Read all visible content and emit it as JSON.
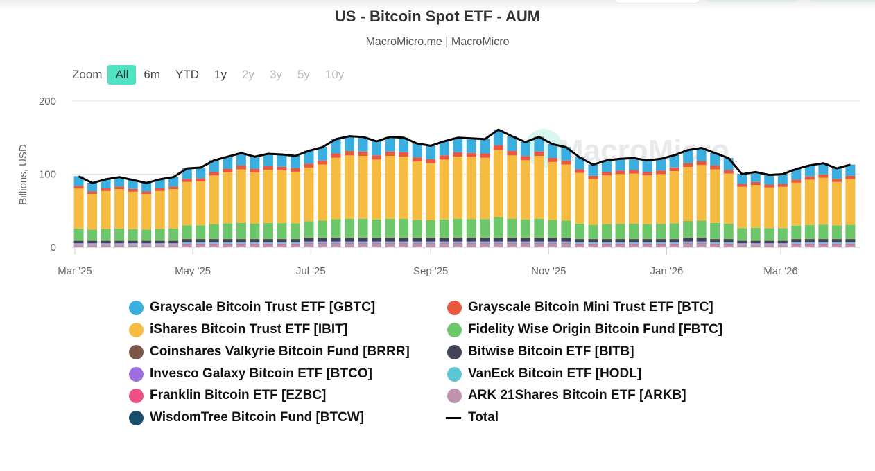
{
  "title": "US - Bitcoin Spot ETF - AUM",
  "subtitle": "MacroMicro.me | MacroMicro",
  "zoom": {
    "label": "Zoom",
    "buttons": [
      {
        "label": "All",
        "state": "active"
      },
      {
        "label": "6m",
        "state": "enabled"
      },
      {
        "label": "YTD",
        "state": "enabled"
      },
      {
        "label": "1y",
        "state": "enabled"
      },
      {
        "label": "2y",
        "state": "disabled"
      },
      {
        "label": "3y",
        "state": "disabled"
      },
      {
        "label": "5y",
        "state": "disabled"
      },
      {
        "label": "10y",
        "state": "disabled"
      }
    ]
  },
  "watermark": "MacroMicro",
  "chart_data": {
    "type": "bar",
    "stacked": true,
    "title": "US - Bitcoin Spot ETF - AUM",
    "subtitle": "MacroMicro.me | MacroMicro",
    "ylabel": "Billions, USD",
    "ylim": [
      0,
      200
    ],
    "yticks": [
      "0",
      "100",
      "200"
    ],
    "xticks": [
      {
        "date": "2025-03-01",
        "label": "Mar '25"
      },
      {
        "date": "2025-05-01",
        "label": "May '25"
      },
      {
        "date": "2025-07-01",
        "label": "Jul '25"
      },
      {
        "date": "2025-09-01",
        "label": "Sep '25"
      },
      {
        "date": "2025-11-01",
        "label": "Nov '25"
      },
      {
        "date": "2026-01-01",
        "label": "Jan '26"
      },
      {
        "date": "2026-03-01",
        "label": "Mar '26"
      }
    ],
    "grid": true,
    "legend": "bottom",
    "x_start": "2025-03-03",
    "x_step": "weekly",
    "series": [
      {
        "name": "Grayscale Bitcoin Trust ETF [GBTC]",
        "color": "#3aafdf",
        "values": [
          12.6,
          11.4,
          12.1,
          12.5,
          12.0,
          11.4,
          12.1,
          12.5,
          14.0,
          14.2,
          15.5,
          16.1,
          16.8,
          16.1,
          16.6,
          16.5,
          16.3,
          17.2,
          17.8,
          19.2,
          19.8,
          19.6,
          18.9,
          19.6,
          19.5,
          18.5,
          18.1,
          18.9,
          19.5,
          19.4,
          19.2,
          20.9,
          19.8,
          18.7,
          19.6,
          18.3,
          17.8,
          16.0,
          14.7,
          15.5,
          15.7,
          15.9,
          15.5,
          15.7,
          16.4,
          17.3,
          17.7,
          16.8,
          15.9,
          13.0,
          13.4,
          12.9,
          13.0,
          13.9,
          14.6,
          15.0,
          14.0,
          14.7
        ]
      },
      {
        "name": "Grayscale Bitcoin Mini Trust ETF [BTC]",
        "color": "#e9573f",
        "values": [
          3.9,
          3.5,
          3.7,
          3.8,
          3.7,
          3.5,
          3.7,
          3.8,
          4.3,
          4.4,
          4.8,
          5.0,
          5.2,
          5.0,
          5.1,
          5.1,
          5.0,
          5.3,
          5.5,
          5.9,
          6.1,
          6.0,
          5.8,
          6.0,
          6.0,
          5.7,
          5.6,
          5.8,
          6.0,
          6.0,
          5.9,
          6.4,
          6.1,
          5.8,
          6.0,
          5.6,
          5.5,
          4.9,
          4.5,
          4.8,
          4.8,
          4.9,
          4.8,
          4.8,
          5.0,
          5.3,
          5.4,
          5.2,
          4.9,
          4.0,
          4.1,
          4.0,
          4.0,
          4.3,
          4.5,
          4.6,
          4.3,
          4.5
        ]
      },
      {
        "name": "iShares Bitcoin Trust ETF [IBIT]",
        "color": "#f6bc41",
        "values": [
          54.4,
          48.5,
          51.8,
          53.8,
          51.1,
          48.5,
          51.8,
          53.8,
          59.4,
          60.0,
          66.6,
          69.9,
          73.2,
          69.9,
          72.6,
          71.9,
          70.6,
          73.3,
          76.6,
          83.9,
          86.5,
          85.9,
          81.9,
          85.9,
          85.2,
          79.9,
          77.9,
          81.9,
          85.2,
          84.5,
          83.9,
          92.5,
          86.5,
          81.2,
          85.9,
          79.3,
          76.6,
          69.3,
          62.7,
          66.6,
          68.0,
          68.6,
          66.6,
          68.0,
          71.3,
          74.0,
          76.0,
          73.2,
          68.6,
          56.4,
          58.4,
          55.7,
          56.4,
          58.7,
          62.0,
          64.0,
          59.4,
          62.7
        ]
      },
      {
        "name": "Fidelity Wise Origin Bitcoin Fund [FBTC]",
        "color": "#6cc66a",
        "values": [
          16.5,
          15.0,
          15.8,
          16.3,
          15.6,
          15.0,
          15.8,
          16.3,
          18.4,
          18.5,
          20.2,
          21.1,
          21.9,
          21.1,
          21.8,
          21.6,
          21.3,
          22.4,
          23.3,
          25.2,
          25.8,
          25.7,
          24.7,
          25.7,
          25.5,
          24.1,
          23.6,
          24.7,
          25.5,
          25.3,
          25.2,
          27.4,
          25.8,
          24.5,
          25.7,
          24.0,
          23.3,
          20.9,
          19.2,
          20.2,
          20.6,
          20.7,
          20.2,
          20.6,
          21.4,
          22.6,
          23.1,
          21.9,
          20.7,
          17.0,
          17.5,
          16.8,
          17.0,
          18.2,
          19.0,
          19.6,
          18.4,
          19.2
        ]
      },
      {
        "name": "Coinshares Valkyrie Bitcoin Fund [BRRR]",
        "color": "#7a5548",
        "values": [
          0.5,
          0.5,
          0.5,
          0.5,
          0.5,
          0.5,
          0.5,
          0.5,
          0.6,
          0.6,
          0.6,
          0.6,
          0.6,
          0.6,
          0.6,
          0.6,
          0.6,
          0.7,
          0.7,
          0.7,
          0.7,
          0.7,
          0.7,
          0.7,
          0.7,
          0.7,
          0.7,
          0.7,
          0.7,
          0.7,
          0.7,
          0.7,
          0.7,
          0.7,
          0.7,
          0.7,
          0.7,
          0.6,
          0.6,
          0.6,
          0.6,
          0.6,
          0.6,
          0.6,
          0.6,
          0.7,
          0.7,
          0.6,
          0.6,
          0.5,
          0.5,
          0.5,
          0.5,
          0.6,
          0.6,
          0.6,
          0.6,
          0.6
        ]
      },
      {
        "name": "Bitwise Bitcoin ETF [BITB]",
        "color": "#424356",
        "values": [
          3.2,
          3.2,
          3.2,
          3.2,
          3.2,
          3.2,
          3.2,
          3.2,
          4.0,
          4.0,
          4.0,
          4.0,
          4.0,
          4.0,
          4.0,
          4.0,
          4.0,
          4.6,
          4.6,
          4.6,
          4.6,
          4.6,
          4.6,
          4.6,
          4.6,
          4.6,
          4.6,
          4.6,
          4.6,
          4.6,
          4.6,
          4.6,
          4.6,
          4.6,
          4.6,
          4.6,
          4.6,
          4.0,
          4.0,
          4.0,
          4.0,
          4.0,
          4.0,
          4.0,
          4.0,
          4.6,
          4.6,
          4.0,
          4.0,
          3.2,
          3.2,
          3.2,
          3.2,
          4.0,
          4.0,
          4.0,
          4.0,
          4.0
        ]
      },
      {
        "name": "Invesco Galaxy Bitcoin ETF [BTCO]",
        "color": "#9b6fe0",
        "values": [
          0.5,
          0.5,
          0.5,
          0.5,
          0.5,
          0.5,
          0.5,
          0.5,
          0.6,
          0.6,
          0.6,
          0.6,
          0.6,
          0.6,
          0.6,
          0.6,
          0.6,
          0.7,
          0.7,
          0.7,
          0.7,
          0.7,
          0.7,
          0.7,
          0.7,
          0.7,
          0.7,
          0.7,
          0.7,
          0.7,
          0.7,
          0.7,
          0.7,
          0.7,
          0.7,
          0.7,
          0.7,
          0.6,
          0.6,
          0.6,
          0.6,
          0.6,
          0.6,
          0.6,
          0.6,
          0.7,
          0.7,
          0.6,
          0.6,
          0.5,
          0.5,
          0.5,
          0.5,
          0.6,
          0.6,
          0.6,
          0.6,
          0.6
        ]
      },
      {
        "name": "VanEck Bitcoin ETF [HODL]",
        "color": "#5bc6d4",
        "values": [
          1.1,
          1.1,
          1.1,
          1.1,
          1.1,
          1.1,
          1.1,
          1.1,
          1.4,
          1.4,
          1.4,
          1.4,
          1.4,
          1.4,
          1.4,
          1.4,
          1.4,
          1.7,
          1.7,
          1.7,
          1.7,
          1.7,
          1.7,
          1.7,
          1.7,
          1.7,
          1.7,
          1.7,
          1.7,
          1.7,
          1.7,
          1.7,
          1.7,
          1.7,
          1.7,
          1.7,
          1.7,
          1.4,
          1.4,
          1.4,
          1.4,
          1.4,
          1.4,
          1.4,
          1.4,
          1.7,
          1.7,
          1.4,
          1.4,
          1.1,
          1.1,
          1.1,
          1.1,
          1.4,
          1.4,
          1.4,
          1.4,
          1.4
        ]
      },
      {
        "name": "Franklin Bitcoin ETF [EZBC]",
        "color": "#f04f86",
        "values": [
          0.6,
          0.6,
          0.6,
          0.6,
          0.6,
          0.6,
          0.6,
          0.6,
          0.7,
          0.7,
          0.7,
          0.7,
          0.7,
          0.7,
          0.7,
          0.7,
          0.7,
          0.8,
          0.8,
          0.8,
          0.8,
          0.8,
          0.8,
          0.8,
          0.8,
          0.8,
          0.8,
          0.8,
          0.8,
          0.8,
          0.8,
          0.8,
          0.8,
          0.8,
          0.8,
          0.8,
          0.8,
          0.7,
          0.7,
          0.7,
          0.7,
          0.7,
          0.7,
          0.7,
          0.7,
          0.8,
          0.8,
          0.7,
          0.7,
          0.6,
          0.6,
          0.6,
          0.6,
          0.7,
          0.7,
          0.7,
          0.7,
          0.7
        ]
      },
      {
        "name": "ARK 21Shares Bitcoin ETF [ARKB]",
        "color": "#bd93ae",
        "values": [
          3.4,
          3.4,
          3.4,
          3.4,
          3.4,
          3.4,
          3.4,
          3.4,
          4.2,
          4.2,
          4.2,
          4.2,
          4.2,
          4.2,
          4.2,
          4.2,
          4.2,
          4.9,
          4.9,
          4.9,
          4.9,
          4.9,
          4.9,
          4.9,
          4.9,
          4.9,
          4.9,
          4.9,
          4.9,
          4.9,
          4.9,
          4.9,
          4.9,
          4.9,
          4.9,
          4.9,
          4.9,
          4.2,
          4.2,
          4.2,
          4.2,
          4.2,
          4.2,
          4.2,
          4.2,
          4.9,
          4.9,
          4.2,
          4.2,
          3.4,
          3.4,
          3.4,
          3.4,
          4.2,
          4.2,
          4.2,
          4.2,
          4.2
        ]
      },
      {
        "name": "WisdomTree Bitcoin Fund [BTCW]",
        "color": "#1b4d6e",
        "values": [
          0.3,
          0.3,
          0.3,
          0.3,
          0.3,
          0.3,
          0.3,
          0.3,
          0.4,
          0.4,
          0.4,
          0.4,
          0.4,
          0.4,
          0.4,
          0.4,
          0.4,
          0.4,
          0.4,
          0.4,
          0.4,
          0.4,
          0.4,
          0.4,
          0.4,
          0.4,
          0.4,
          0.4,
          0.4,
          0.4,
          0.4,
          0.4,
          0.4,
          0.4,
          0.4,
          0.4,
          0.4,
          0.4,
          0.4,
          0.4,
          0.4,
          0.4,
          0.4,
          0.4,
          0.4,
          0.4,
          0.4,
          0.4,
          0.4,
          0.3,
          0.3,
          0.3,
          0.3,
          0.4,
          0.4,
          0.4,
          0.4,
          0.4
        ]
      },
      {
        "name": "Total",
        "color": "#000000",
        "type": "line",
        "values": [
          97,
          88,
          93,
          96,
          92,
          88,
          93,
          96,
          108,
          109,
          119,
          124,
          129,
          124,
          128,
          127,
          125,
          132,
          137,
          148,
          152,
          151,
          145,
          151,
          150,
          142,
          139,
          145,
          150,
          149,
          148,
          161,
          152,
          144,
          151,
          141,
          137,
          123,
          113,
          119,
          121,
          122,
          119,
          121,
          126,
          133,
          136,
          129,
          122,
          100,
          103,
          99,
          100,
          107,
          112,
          115,
          108,
          113
        ]
      }
    ]
  }
}
